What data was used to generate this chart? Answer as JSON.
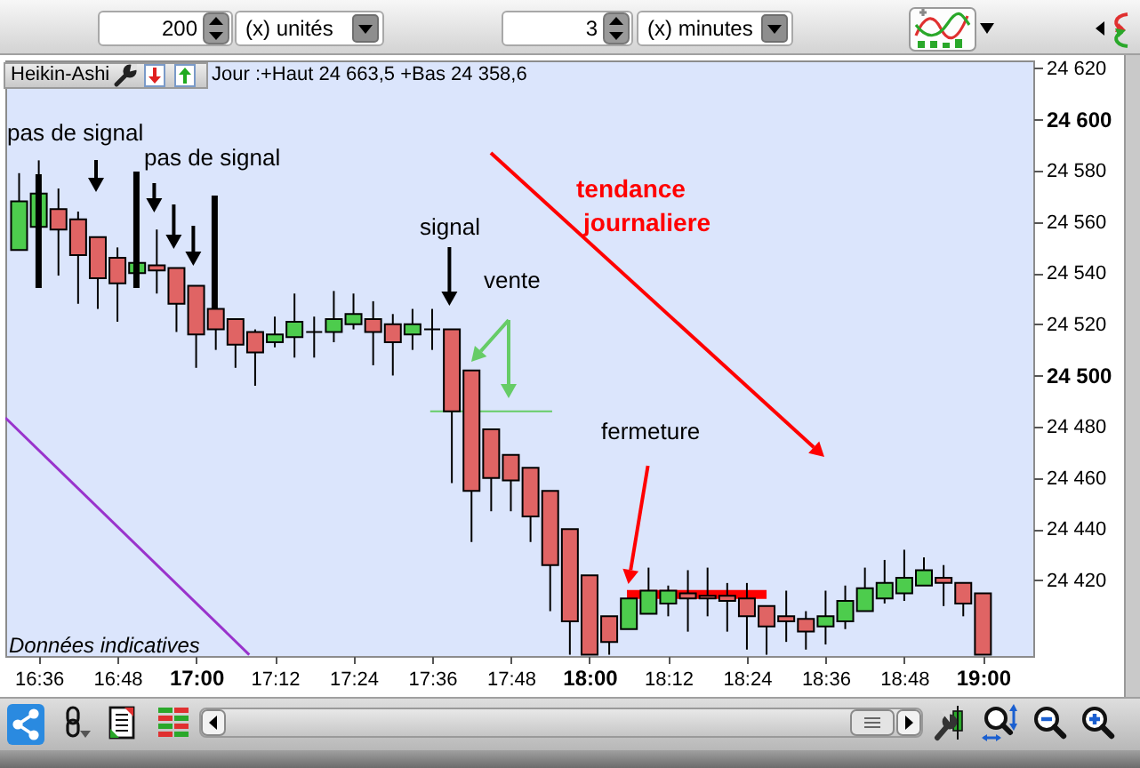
{
  "chart_data": {
    "type": "candlestick",
    "x": [
      16.55,
      16.6,
      16.65,
      16.7,
      16.75,
      16.8,
      16.85,
      16.9,
      16.95,
      17,
      17.05,
      17.1,
      17.15,
      17.2,
      17.25,
      17.3,
      17.35,
      17.4,
      17.45,
      17.5,
      17.55,
      17.6,
      17.65,
      17.7,
      17.75,
      17.8,
      17.85,
      17.9,
      17.95,
      18,
      18.05,
      18.1,
      18.15,
      18.2,
      18.25,
      18.3,
      18.35,
      18.4,
      18.45,
      18.5,
      18.55,
      18.6,
      18.65,
      18.7,
      18.75,
      18.8,
      18.85,
      18.9,
      18.95,
      19
    ],
    "ohlc": [
      [
        24549,
        24579,
        24549,
        24568
      ],
      [
        24558,
        24584,
        24558,
        24571
      ],
      [
        24565,
        24573,
        24539,
        24557
      ],
      [
        24561,
        24564,
        24528,
        24547
      ],
      [
        24554,
        24554,
        24526,
        24538
      ],
      [
        24546,
        24550,
        24521,
        24536
      ],
      [
        24540,
        24544,
        24540,
        24544
      ],
      [
        24543,
        24557,
        24532,
        24541
      ],
      [
        24542,
        24542,
        24517,
        24528
      ],
      [
        24535,
        24535,
        24503,
        24516
      ],
      [
        24526,
        24526,
        24510,
        24518
      ],
      [
        24522,
        24522,
        24503,
        24512
      ],
      [
        24517,
        24518,
        24496,
        24509
      ],
      [
        24513,
        24523,
        24511,
        24516
      ],
      [
        24515,
        24532,
        24507,
        24521
      ],
      [
        24517,
        24523,
        24507,
        24517
      ],
      [
        24517,
        24533,
        24513,
        24522
      ],
      [
        24520,
        24532,
        24518,
        24524
      ],
      [
        24522,
        24529,
        24504,
        24517
      ],
      [
        24520,
        24524,
        24500,
        24513
      ],
      [
        24516,
        24526,
        24510,
        24520
      ],
      [
        24518,
        24526,
        24510,
        24518
      ],
      [
        24518,
        24518,
        24458,
        24486
      ],
      [
        24502,
        24502,
        24435,
        24455
      ],
      [
        24479,
        24479,
        24447,
        24460
      ],
      [
        24469,
        24469,
        24447,
        24459
      ],
      [
        24464,
        24464,
        24435,
        24445
      ],
      [
        24455,
        24455,
        24408,
        24426
      ],
      [
        24440,
        24440,
        24391,
        24404
      ],
      [
        24422,
        24422,
        24391,
        24391
      ],
      [
        24406,
        24406,
        24391,
        24396
      ],
      [
        24401,
        24413,
        24401,
        24413
      ],
      [
        24407,
        24425,
        24407,
        24416
      ],
      [
        24411,
        24418,
        24406,
        24416
      ],
      [
        24415,
        24424,
        24400,
        24413
      ],
      [
        24414,
        24425,
        24406,
        24413
      ],
      [
        24414,
        24419,
        24400,
        24412
      ],
      [
        24413,
        24419,
        24393,
        24406
      ],
      [
        24410,
        24410,
        24391,
        24402
      ],
      [
        24406,
        24416,
        24396,
        24404
      ],
      [
        24405,
        24408,
        24393,
        24400
      ],
      [
        24402,
        24416,
        24395,
        24406
      ],
      [
        24404,
        24418,
        24401,
        24412
      ],
      [
        24408,
        24425,
        24408,
        24417
      ],
      [
        24413,
        24428,
        24411,
        24419
      ],
      [
        24415,
        24432,
        24412,
        24421
      ],
      [
        24418,
        24429,
        24418,
        24424
      ],
      [
        24421,
        24426,
        24410,
        24419
      ],
      [
        24419,
        24419,
        24406,
        24411
      ],
      [
        24415,
        24415,
        24391,
        24391
      ]
    ],
    "colors": [
      "#4dcc4d",
      "#4dcc4d",
      "#e06464",
      "#e06464",
      "#e06464",
      "#e06464",
      "#4dcc4d",
      "#e06464",
      "#e06464",
      "#e06464",
      "#e06464",
      "#e06464",
      "#e06464",
      "#4dcc4d",
      "#4dcc4d",
      "#000000",
      "#4dcc4d",
      "#4dcc4d",
      "#e06464",
      "#e06464",
      "#4dcc4d",
      "#000000",
      "#e06464",
      "#e06464",
      "#e06464",
      "#e06464",
      "#e06464",
      "#e06464",
      "#e06464",
      "#e06464",
      "#e06464",
      "#4dcc4d",
      "#4dcc4d",
      "#4dcc4d",
      "#e06464",
      "#e06464",
      "#e06464",
      "#e06464",
      "#e06464",
      "#e06464",
      "#e06464",
      "#4dcc4d",
      "#4dcc4d",
      "#4dcc4d",
      "#4dcc4d",
      "#4dcc4d",
      "#4dcc4d",
      "#e06464",
      "#e06464",
      "#e06464"
    ],
    "series": [
      {
        "type": "line",
        "color": "#9933cc",
        "x": [
          16.515,
          17.135
        ],
        "values": [
          24483.5,
          24391
        ]
      },
      {
        "type": "line",
        "color": "#66cc66",
        "x": [
          17.595,
          17.905
        ],
        "values": [
          24486,
          24486
        ]
      },
      {
        "type": "line",
        "color": "#ff0000",
        "x": [
          18.095,
          18.45
        ],
        "values": [
          24414.5,
          24414.5
        ]
      }
    ],
    "xlim": [
      16.515,
      19.128
    ],
    "ylim": [
      24390.5,
      24623
    ],
    "xticks": [
      {
        "value": 16.6,
        "label": "16:36"
      },
      {
        "value": 16.8,
        "label": "16:48"
      },
      {
        "value": 17,
        "label": "17:00"
      },
      {
        "value": 17.2,
        "label": "17:12"
      },
      {
        "value": 17.4,
        "label": "17:24"
      },
      {
        "value": 17.6,
        "label": "17:36"
      },
      {
        "value": 17.8,
        "label": "17:48"
      },
      {
        "value": 18,
        "label": "18:00"
      },
      {
        "value": 18.2,
        "label": "18:12"
      },
      {
        "value": 18.4,
        "label": "18:24"
      },
      {
        "value": 18.6,
        "label": "18:36"
      },
      {
        "value": 18.8,
        "label": "18:48"
      },
      {
        "value": 19,
        "label": "19:00"
      }
    ],
    "yticks": [
      {
        "value": 24420,
        "label": "24 420"
      },
      {
        "value": 24440,
        "label": "24 440"
      },
      {
        "value": 24460,
        "label": "24 460"
      },
      {
        "value": 24480,
        "label": "24 480"
      },
      {
        "value": 24500,
        "label": "24 500"
      },
      {
        "value": 24520,
        "label": "24 520"
      },
      {
        "value": 24540,
        "label": "24 540"
      },
      {
        "value": 24560,
        "label": "24 560"
      },
      {
        "value": 24580,
        "label": "24 580"
      },
      {
        "value": 24600,
        "label": "24 600"
      },
      {
        "value": 24620,
        "label": "24 620"
      }
    ],
    "annotations": [
      "200",
      "(x) unités",
      "3",
      "(x) minutes",
      "Heikin-Ashi",
      "Jour :+Haut 24 663,5 +Bas 24 358,6",
      "pas de signal",
      "pas de signal",
      "signal",
      "vente",
      "fermeture",
      "tendance\njournaliere",
      "Données indicatives"
    ]
  }
}
